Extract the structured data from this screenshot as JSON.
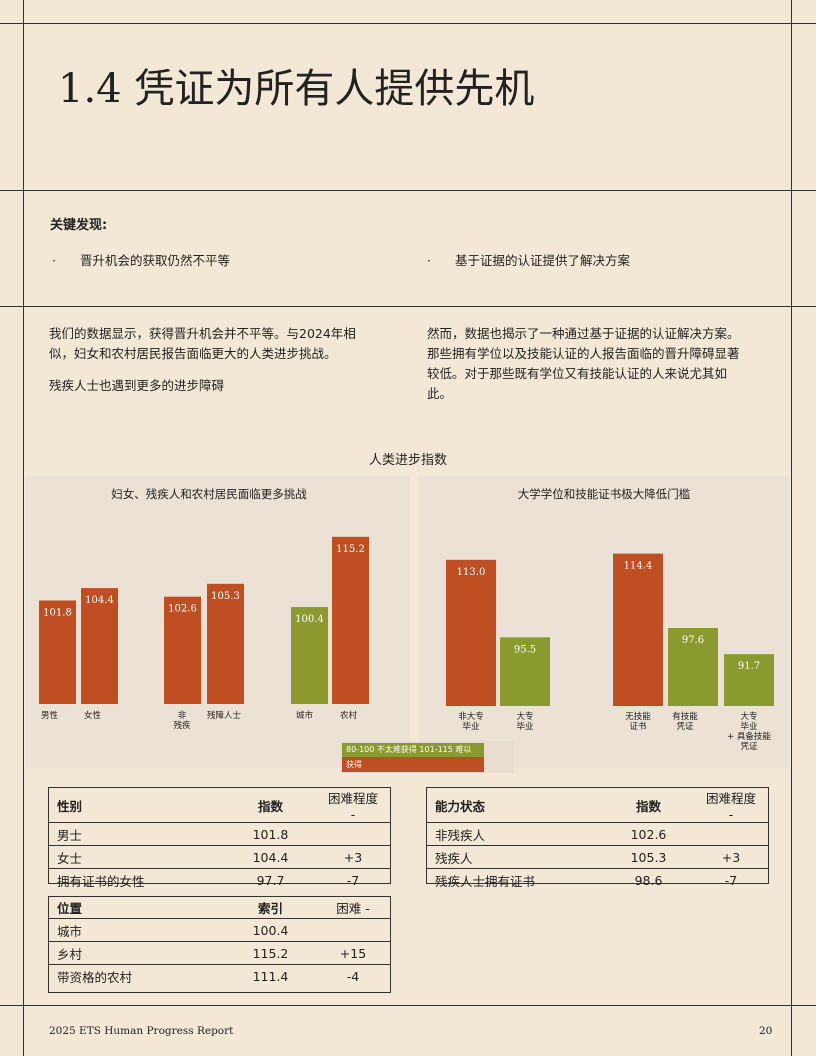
{
  "title": "1.4 凭证为所有人提供先机",
  "key_findings": {
    "label": "关键发现:",
    "items": [
      "晋升机会的获取仍然不平等",
      "基于证据的认证提供了解决方案"
    ]
  },
  "left_text": {
    "p1": "我们的数据显示，获得晋升机会并不平等。与2024年相似，妇女和农村居民报告面临更大的人类进步挑战。",
    "p2": "残疾人士也遇到更多的进步障碍"
  },
  "right_text": {
    "p1": "然而，数据也揭示了一种通过基于证据的认证解决方案。那些拥有学位以及技能认证的人报告面临的晋升障碍显著较低。对于那些既有学位又有技能认证的人来说尤其如此。"
  },
  "chart_heading": "人类进步指数",
  "chart_data": [
    {
      "type": "bar",
      "title": "妇女、残疾人和农村居民面临更多挑战",
      "categories": [
        "男性",
        "女性",
        "非残疾",
        "残障人士",
        "城市",
        "农村"
      ],
      "values": [
        101.8,
        104.4,
        102.6,
        105.3,
        100.4,
        115.2
      ],
      "colors": [
        "#bf4f22",
        "#bf4f22",
        "#bf4f22",
        "#bf4f22",
        "#8a9a2e",
        "#bf4f22"
      ]
    },
    {
      "type": "bar",
      "title": "大学学位和技能证书极大降低门槛",
      "categories": [
        "非大专毕业",
        "大专毕业",
        "无技能证书",
        "有技能凭证",
        "大专毕业+具备技能凭证"
      ],
      "values": [
        113.0,
        95.5,
        114.4,
        97.6,
        91.7
      ],
      "colors": [
        "#bf4f22",
        "#8a9a2e",
        "#bf4f22",
        "#8a9a2e",
        "#8a9a2e"
      ]
    }
  ],
  "legend": {
    "green": "80-100 不太难获得 101-115 难以",
    "orange": "获得"
  },
  "tables": {
    "gender": {
      "headers": [
        "性别",
        "指数",
        "困难程度 -"
      ],
      "rows": [
        [
          "男士",
          "101.8",
          ""
        ],
        [
          "女士",
          "104.4",
          "+3"
        ],
        [
          "拥有证书的女性",
          "97.7",
          "-7"
        ]
      ]
    },
    "location": {
      "headers": [
        "位置",
        "索引",
        "困难 -"
      ],
      "rows": [
        [
          "城市",
          "100.4",
          ""
        ],
        [
          "乡村",
          "115.2",
          "+15"
        ],
        [
          "带资格的农村",
          "111.4",
          "-4"
        ]
      ]
    },
    "ability": {
      "headers": [
        "能力状态",
        "指数",
        "困难程度 -"
      ],
      "rows": [
        [
          "非残疾人",
          "102.6",
          ""
        ],
        [
          "残疾人",
          "105.3",
          "+3"
        ],
        [
          "残疾人士拥有证书",
          "98.6",
          "-7"
        ]
      ]
    }
  },
  "footer": {
    "left": "2025 ETS Human Progress Report",
    "page": "20"
  }
}
